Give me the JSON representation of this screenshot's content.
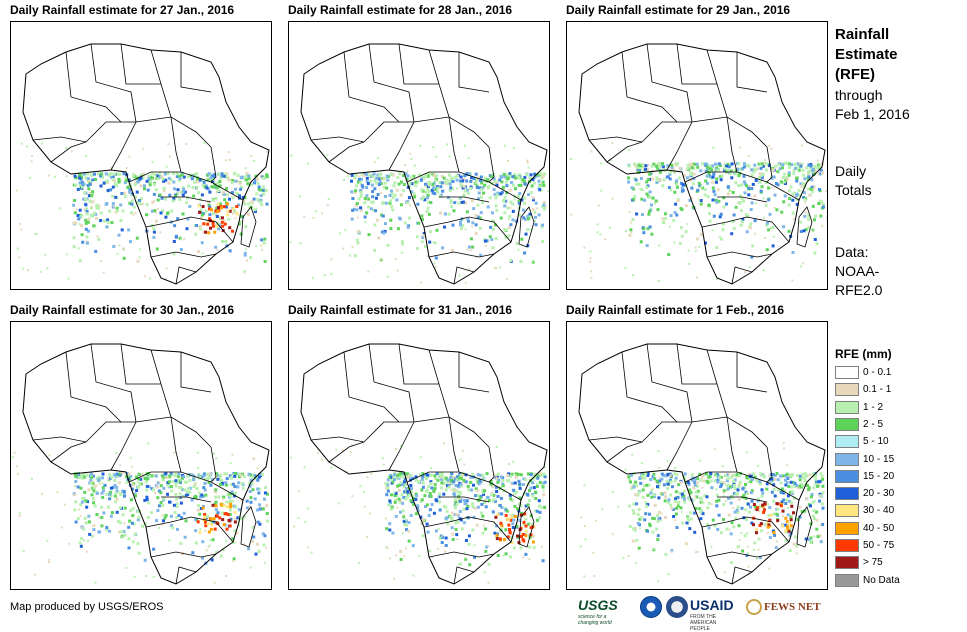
{
  "panels": [
    {
      "title": "Daily Rainfall estimate for 27 Jan., 2016",
      "heavy_east": true,
      "band": "central"
    },
    {
      "title": "Daily Rainfall estimate for 28 Jan., 2016",
      "heavy_east": false,
      "band": "central"
    },
    {
      "title": "Daily Rainfall estimate for 29 Jan., 2016",
      "heavy_east": false,
      "band": "wide"
    },
    {
      "title": "Daily Rainfall estimate for 30 Jan., 2016",
      "heavy_east": true,
      "band": "central"
    },
    {
      "title": "Daily Rainfall estimate for 31 Jan., 2016",
      "heavy_east": true,
      "band": "east"
    },
    {
      "title": "Daily Rainfall estimate for 1 Feb., 2016",
      "heavy_east": true,
      "band": "central"
    }
  ],
  "side": {
    "title_lines": [
      "Rainfall",
      "Estimate",
      "(RFE)"
    ],
    "through": "through",
    "date": "Feb 1, 2016",
    "daily": "Daily",
    "totals": "Totals",
    "data_label": "Data:",
    "data_source_1": "NOAA-",
    "data_source_2": "RFE2.0"
  },
  "legend": {
    "title": "RFE (mm)",
    "items": [
      {
        "label": "0 - 0.1",
        "color": "#ffffff"
      },
      {
        "label": "0.1 - 1",
        "color": "#e8d9bd"
      },
      {
        "label": "1 - 2",
        "color": "#b8f0b0"
      },
      {
        "label": "2 - 5",
        "color": "#5ed35a"
      },
      {
        "label": "5 - 10",
        "color": "#b0ecf4"
      },
      {
        "label": "10 - 15",
        "color": "#7fb6ea"
      },
      {
        "label": "15 - 20",
        "color": "#4a8fe0"
      },
      {
        "label": "20 - 30",
        "color": "#1f5fd8"
      },
      {
        "label": "30 - 40",
        "color": "#ffe680"
      },
      {
        "label": "40 - 50",
        "color": "#ffa200"
      },
      {
        "label": "50 - 75",
        "color": "#ff3a00"
      },
      {
        "label": "> 75",
        "color": "#a01818"
      },
      {
        "label": "No Data",
        "color": "#999999"
      }
    ]
  },
  "footer": "Map produced by USGS/EROS",
  "logos": {
    "usgs": "USGS",
    "usgs_tag": "science for a changing world",
    "usaid": "USAID",
    "usaid_tag": "FROM THE AMERICAN PEOPLE",
    "fews": "FEWS NET"
  }
}
